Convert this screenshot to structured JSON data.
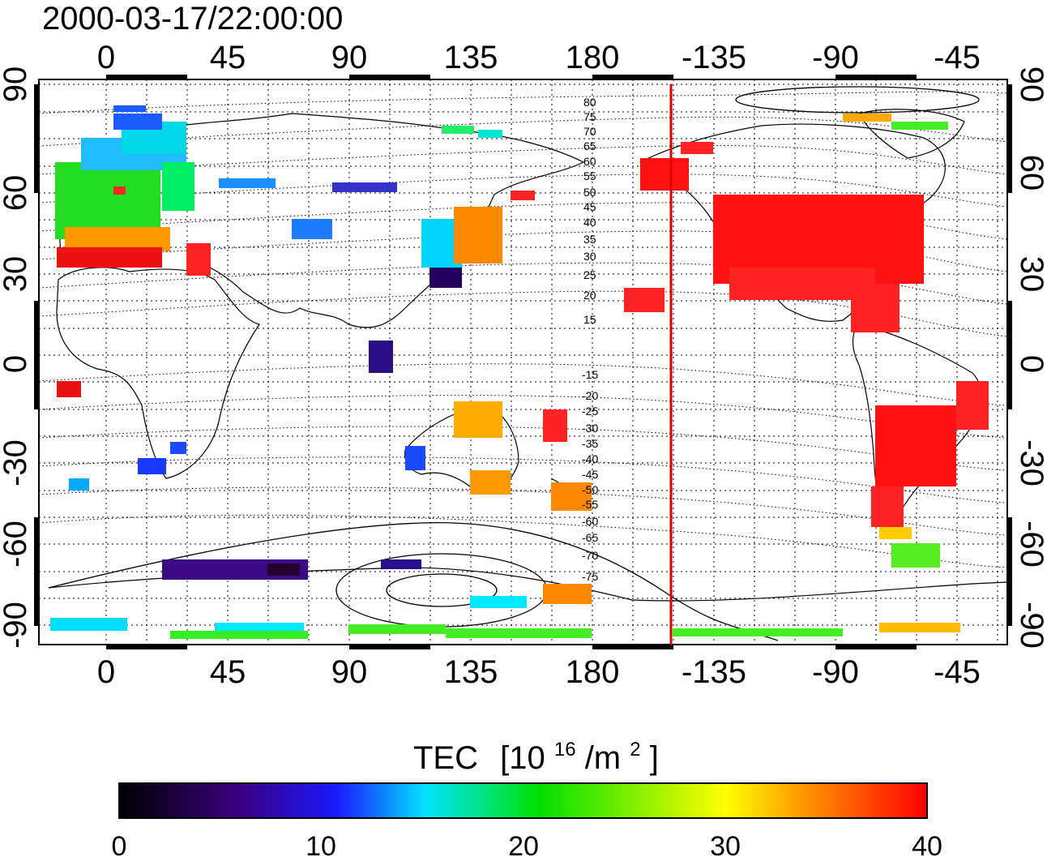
{
  "title": "2000-03-17/22:00:00",
  "map": {
    "lon_labels": [
      "0",
      "45",
      "90",
      "135",
      "180",
      "-135",
      "-90",
      "-45"
    ],
    "lat_labels": [
      "90",
      "60",
      "30",
      "0",
      "-30",
      "-60",
      "-90"
    ],
    "contour_labels": [
      "80",
      "75",
      "70",
      "65",
      "60",
      "55",
      "50",
      "45",
      "40",
      "35",
      "30",
      "25",
      "20",
      "15",
      "-15",
      "-20",
      "-25",
      "-30",
      "-35",
      "-40",
      "-45",
      "-50",
      "-55",
      "-60",
      "-65",
      "-70",
      "-75"
    ],
    "terminator_color": "#dd0000"
  },
  "colorbar": {
    "label": "TEC",
    "unit_prefix": "[10",
    "unit_exp": "16",
    "unit_mid": "/m",
    "unit_exp2": "2",
    "unit_suffix": "]",
    "ticks": [
      "0",
      "10",
      "20",
      "30",
      "40"
    ],
    "colors": [
      "#000000",
      "#3a0080",
      "#1a1aff",
      "#00e5ff",
      "#00e000",
      "#ffff00",
      "#ff8000",
      "#ff0000"
    ]
  }
}
